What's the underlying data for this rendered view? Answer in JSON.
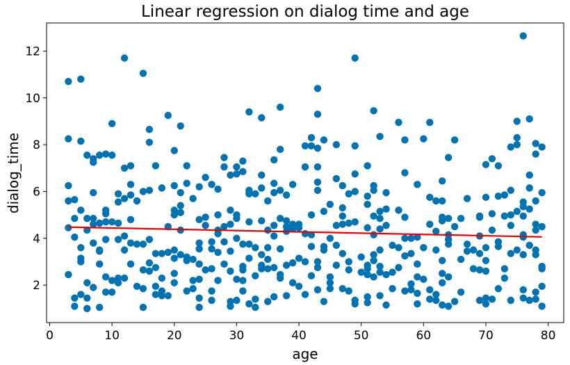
{
  "chart_data": {
    "type": "scatter",
    "title": "Linear regression on dialog time and age",
    "xlabel": "age",
    "ylabel": "dialog_time",
    "xlim": [
      -0.5,
      82.5
    ],
    "ylim": [
      0.4,
      13.2
    ],
    "xticks": [
      0,
      10,
      20,
      30,
      40,
      50,
      60,
      70,
      80
    ],
    "yticks": [
      2,
      4,
      6,
      8,
      10,
      12
    ],
    "grid": false,
    "point_color": "#0173b2",
    "line_color": "#ee0000",
    "regression_line": {
      "x": [
        3,
        79
      ],
      "y": [
        4.48,
        4.06
      ]
    },
    "points": [
      [
        3,
        10.7
      ],
      [
        3,
        8.25
      ],
      [
        3,
        6.25
      ],
      [
        3,
        5.6
      ],
      [
        3,
        4.45
      ],
      [
        3,
        2.45
      ],
      [
        4,
        5.65
      ],
      [
        4,
        4.85
      ],
      [
        4,
        4.05
      ],
      [
        4,
        1.45
      ],
      [
        4,
        1.1
      ],
      [
        5,
        10.8
      ],
      [
        5,
        8.15
      ],
      [
        5,
        5.2
      ],
      [
        5,
        3.6
      ],
      [
        5,
        3.15
      ],
      [
        5,
        3.0
      ],
      [
        5,
        1.6
      ],
      [
        6,
        7.55
      ],
      [
        6,
        4.85
      ],
      [
        6,
        4.35
      ],
      [
        6,
        2.1
      ],
      [
        6,
        1.45
      ],
      [
        6,
        1.0
      ],
      [
        7,
        7.4
      ],
      [
        7,
        7.25
      ],
      [
        7,
        5.95
      ],
      [
        7,
        4.85
      ],
      [
        7,
        4.6
      ],
      [
        7,
        3.8
      ],
      [
        7,
        1.9
      ],
      [
        8,
        7.55
      ],
      [
        8,
        4.65
      ],
      [
        8,
        3.5
      ],
      [
        8,
        3.45
      ],
      [
        8,
        2.9
      ],
      [
        8,
        1.05
      ],
      [
        9,
        7.6
      ],
      [
        9,
        5.2
      ],
      [
        9,
        5.05
      ],
      [
        9,
        4.7
      ],
      [
        9,
        3.95
      ],
      [
        9,
        2.35
      ],
      [
        9,
        1.7
      ],
      [
        10,
        8.9
      ],
      [
        10,
        7.55
      ],
      [
        10,
        4.7
      ],
      [
        10,
        2.2
      ],
      [
        10,
        1.7
      ],
      [
        11,
        5.9
      ],
      [
        11,
        5.55
      ],
      [
        11,
        4.65
      ],
      [
        11,
        3.95
      ],
      [
        11,
        2.3
      ],
      [
        11,
        2.1
      ],
      [
        12,
        11.7
      ],
      [
        12,
        7.0
      ],
      [
        12,
        5.7
      ],
      [
        12,
        4.1
      ],
      [
        12,
        3.5
      ],
      [
        12,
        2.3
      ],
      [
        13,
        7.1
      ],
      [
        13,
        6.3
      ],
      [
        13,
        5.85
      ],
      [
        13,
        4.8
      ],
      [
        13,
        3.8
      ],
      [
        13,
        2.9
      ],
      [
        14,
        5.6
      ],
      [
        14,
        3.75
      ],
      [
        14,
        1.95
      ],
      [
        15,
        11.05
      ],
      [
        15,
        6.0
      ],
      [
        15,
        3.75
      ],
      [
        15,
        2.65
      ],
      [
        15,
        1.85
      ],
      [
        15,
        1.05
      ],
      [
        16,
        8.65
      ],
      [
        16,
        8.1
      ],
      [
        16,
        6.05
      ],
      [
        16,
        3.95
      ],
      [
        16,
        2.95
      ],
      [
        16,
        2.6
      ],
      [
        17,
        7.1
      ],
      [
        17,
        3.35
      ],
      [
        17,
        2.75
      ],
      [
        17,
        1.95
      ],
      [
        17,
        1.6
      ],
      [
        18,
        6.15
      ],
      [
        18,
        3.35
      ],
      [
        18,
        2.3
      ],
      [
        18,
        1.75
      ],
      [
        18,
        1.55
      ],
      [
        19,
        9.25
      ],
      [
        19,
        4.5
      ],
      [
        19,
        3.4
      ],
      [
        19,
        1.55
      ],
      [
        20,
        7.75
      ],
      [
        20,
        6.25
      ],
      [
        20,
        5.2
      ],
      [
        20,
        5.0
      ],
      [
        20,
        3.5
      ],
      [
        20,
        3.15
      ],
      [
        20,
        2.5
      ],
      [
        20,
        2.1
      ],
      [
        21,
        8.8
      ],
      [
        21,
        5.95
      ],
      [
        21,
        5.4
      ],
      [
        21,
        5.1
      ],
      [
        21,
        4.35
      ],
      [
        21,
        3.3
      ],
      [
        22,
        7.1
      ],
      [
        22,
        6.35
      ],
      [
        22,
        3.2
      ],
      [
        22,
        3.05
      ],
      [
        22,
        1.75
      ],
      [
        23,
        5.7
      ],
      [
        23,
        3.1
      ],
      [
        23,
        2.2
      ],
      [
        23,
        1.85
      ],
      [
        24,
        6.2
      ],
      [
        24,
        4.8
      ],
      [
        24,
        3.8
      ],
      [
        24,
        3.55
      ],
      [
        24,
        2.9
      ],
      [
        24,
        2.25
      ],
      [
        24,
        1.45
      ],
      [
        24,
        1.05
      ],
      [
        25,
        6.6
      ],
      [
        25,
        4.9
      ],
      [
        25,
        4.55
      ],
      [
        25,
        2.65
      ],
      [
        26,
        6.3
      ],
      [
        26,
        3.85
      ],
      [
        26,
        3.55
      ],
      [
        26,
        2.7
      ],
      [
        26,
        1.75
      ],
      [
        26,
        1.35
      ],
      [
        27,
        6.1
      ],
      [
        27,
        5.0
      ],
      [
        27,
        4.35
      ],
      [
        27,
        4.2
      ],
      [
        27,
        3.4
      ],
      [
        27,
        2.2
      ],
      [
        28,
        7.45
      ],
      [
        28,
        7.05
      ],
      [
        28,
        4.5
      ],
      [
        28,
        3.85
      ],
      [
        28,
        2.9
      ],
      [
        29,
        6.7
      ],
      [
        29,
        5.2
      ],
      [
        29,
        4.6
      ],
      [
        29,
        3.45
      ],
      [
        29,
        2.6
      ],
      [
        29,
        1.3
      ],
      [
        29,
        1.1
      ],
      [
        30,
        7.05
      ],
      [
        30,
        6.75
      ],
      [
        30,
        5.0
      ],
      [
        30,
        4.85
      ],
      [
        30,
        4.0
      ],
      [
        30,
        2.25
      ],
      [
        30,
        1.35
      ],
      [
        31,
        7.3
      ],
      [
        31,
        6.85
      ],
      [
        31,
        3.75
      ],
      [
        31,
        2.8
      ],
      [
        31,
        2.65
      ],
      [
        31,
        2.2
      ],
      [
        31,
        1.75
      ],
      [
        32,
        9.4
      ],
      [
        32,
        6.05
      ],
      [
        32,
        5.9
      ],
      [
        32,
        4.7
      ],
      [
        32,
        3.75
      ],
      [
        32,
        3.15
      ],
      [
        32,
        1.2
      ],
      [
        33,
        5.9
      ],
      [
        33,
        3.6
      ],
      [
        33,
        2.4
      ],
      [
        33,
        1.4
      ],
      [
        33,
        1.05
      ],
      [
        34,
        9.15
      ],
      [
        34,
        6.7
      ],
      [
        34,
        6.15
      ],
      [
        34,
        4.75
      ],
      [
        34,
        3.3
      ],
      [
        34,
        2.85
      ],
      [
        34,
        2.7
      ],
      [
        35,
        5.6
      ],
      [
        35,
        4.35
      ],
      [
        35,
        3.6
      ],
      [
        35,
        3.1
      ],
      [
        35,
        2.7
      ],
      [
        35,
        1.3
      ],
      [
        36,
        7.35
      ],
      [
        36,
        6.35
      ],
      [
        36,
        5.95
      ],
      [
        36,
        4.55
      ],
      [
        36,
        4.1
      ],
      [
        36,
        2.75
      ],
      [
        36,
        1.5
      ],
      [
        37,
        9.6
      ],
      [
        37,
        7.8
      ],
      [
        37,
        6.05
      ],
      [
        37,
        4.85
      ],
      [
        37,
        3.55
      ],
      [
        37,
        2.45
      ],
      [
        37,
        2.3
      ],
      [
        38,
        5.85
      ],
      [
        38,
        4.75
      ],
      [
        38,
        4.5
      ],
      [
        38,
        4.3
      ],
      [
        38,
        2.85
      ],
      [
        38,
        1.55
      ],
      [
        39,
        6.3
      ],
      [
        39,
        4.6
      ],
      [
        39,
        4.4
      ],
      [
        39,
        2.95
      ],
      [
        39,
        2.1
      ],
      [
        40,
        4.6
      ],
      [
        40,
        4.45
      ],
      [
        40,
        3.15
      ],
      [
        40,
        1.95
      ],
      [
        41,
        7.95
      ],
      [
        41,
        7.05
      ],
      [
        41,
        4.2
      ],
      [
        41,
        3.0
      ],
      [
        41,
        1.6
      ],
      [
        42,
        8.3
      ],
      [
        42,
        7.95
      ],
      [
        42,
        5.0
      ],
      [
        42,
        4.15
      ],
      [
        42,
        3.65
      ],
      [
        42,
        2.4
      ],
      [
        43,
        10.4
      ],
      [
        43,
        9.3
      ],
      [
        43,
        7.85
      ],
      [
        43,
        7.05
      ],
      [
        43,
        6.4
      ],
      [
        43,
        6.05
      ],
      [
        43,
        3.0
      ],
      [
        43,
        2.75
      ],
      [
        43,
        1.8
      ],
      [
        44,
        8.2
      ],
      [
        44,
        5.15
      ],
      [
        44,
        3.65
      ],
      [
        44,
        3.5
      ],
      [
        44,
        1.3
      ],
      [
        45,
        5.45
      ],
      [
        45,
        4.0
      ],
      [
        45,
        2.35
      ],
      [
        45,
        2.1
      ],
      [
        45,
        1.85
      ],
      [
        46,
        8.0
      ],
      [
        46,
        6.55
      ],
      [
        46,
        4.55
      ],
      [
        46,
        3.7
      ],
      [
        46,
        2.85
      ],
      [
        47,
        6.25
      ],
      [
        47,
        5.3
      ],
      [
        47,
        4.95
      ],
      [
        47,
        4.6
      ],
      [
        47,
        3.35
      ],
      [
        47,
        1.85
      ],
      [
        48,
        5.9
      ],
      [
        48,
        4.65
      ],
      [
        48,
        3.0
      ],
      [
        48,
        2.65
      ],
      [
        48,
        1.75
      ],
      [
        49,
        11.7
      ],
      [
        49,
        7.95
      ],
      [
        49,
        6.75
      ],
      [
        49,
        6.0
      ],
      [
        49,
        4.7
      ],
      [
        49,
        1.35
      ],
      [
        49,
        1.2
      ],
      [
        50,
        3.2
      ],
      [
        50,
        2.55
      ],
      [
        51,
        7.1
      ],
      [
        51,
        5.8
      ],
      [
        51,
        5.45
      ],
      [
        51,
        4.45
      ],
      [
        51,
        2.85
      ],
      [
        51,
        2.7
      ],
      [
        51,
        2.45
      ],
      [
        51,
        1.5
      ],
      [
        51,
        1.25
      ],
      [
        52,
        9.45
      ],
      [
        52,
        6.25
      ],
      [
        52,
        6.05
      ],
      [
        52,
        4.95
      ],
      [
        52,
        4.15
      ],
      [
        52,
        3.3
      ],
      [
        52,
        3.05
      ],
      [
        52,
        2.35
      ],
      [
        53,
        8.35
      ],
      [
        53,
        5.15
      ],
      [
        53,
        4.85
      ],
      [
        53,
        4.4
      ],
      [
        53,
        3.5
      ],
      [
        53,
        2.8
      ],
      [
        53,
        2.55
      ],
      [
        53,
        1.55
      ],
      [
        54,
        5.95
      ],
      [
        54,
        5.25
      ],
      [
        54,
        4.55
      ],
      [
        54,
        2.45
      ],
      [
        54,
        1.15
      ],
      [
        55,
        3.7
      ],
      [
        55,
        2.55
      ],
      [
        55,
        1.85
      ],
      [
        56,
        8.95
      ],
      [
        56,
        5.2
      ],
      [
        56,
        3.6
      ],
      [
        56,
        2.75
      ],
      [
        57,
        8.2
      ],
      [
        57,
        6.8
      ],
      [
        57,
        4.9
      ],
      [
        57,
        4.0
      ],
      [
        57,
        3.25
      ],
      [
        57,
        1.75
      ],
      [
        58,
        4.0
      ],
      [
        58,
        3.35
      ],
      [
        58,
        2.05
      ],
      [
        58,
        1.8
      ],
      [
        59,
        6.3
      ],
      [
        59,
        4.05
      ],
      [
        59,
        2.9
      ],
      [
        59,
        2.35
      ],
      [
        59,
        1.65
      ],
      [
        59,
        1.2
      ],
      [
        60,
        8.25
      ],
      [
        60,
        3.6
      ],
      [
        60,
        2.25
      ],
      [
        61,
        8.95
      ],
      [
        61,
        5.75
      ],
      [
        61,
        4.6
      ],
      [
        61,
        1.8
      ],
      [
        61,
        1.4
      ],
      [
        62,
        5.6
      ],
      [
        62,
        4.3
      ],
      [
        62,
        3.5
      ],
      [
        62,
        1.6
      ],
      [
        62,
        1.35
      ],
      [
        63,
        6.45
      ],
      [
        63,
        5.6
      ],
      [
        63,
        4.9
      ],
      [
        63,
        4.75
      ],
      [
        63,
        3.05
      ],
      [
        63,
        2.5
      ],
      [
        63,
        2.1
      ],
      [
        63,
        1.15
      ],
      [
        64,
        7.45
      ],
      [
        64,
        4.85
      ],
      [
        64,
        4.15
      ],
      [
        64,
        3.95
      ],
      [
        64,
        3.75
      ],
      [
        64,
        2.35
      ],
      [
        64,
        1.1
      ],
      [
        65,
        8.2
      ],
      [
        65,
        4.5
      ],
      [
        65,
        1.3
      ],
      [
        66,
        4.85
      ],
      [
        66,
        3.1
      ],
      [
        66,
        1.7
      ],
      [
        67,
        5.7
      ],
      [
        67,
        3.75
      ],
      [
        67,
        3.45
      ],
      [
        68,
        3.5
      ],
      [
        68,
        2.7
      ],
      [
        69,
        4.95
      ],
      [
        69,
        4.9
      ],
      [
        69,
        4.1
      ],
      [
        69,
        3.35
      ],
      [
        69,
        2.65
      ],
      [
        69,
        1.35
      ],
      [
        70,
        7.15
      ],
      [
        70,
        5.75
      ],
      [
        70,
        3.6
      ],
      [
        70,
        3.05
      ],
      [
        70,
        2.6
      ],
      [
        70,
        1.45
      ],
      [
        70,
        1.2
      ],
      [
        71,
        7.4
      ],
      [
        71,
        5.05
      ],
      [
        71,
        4.35
      ],
      [
        71,
        1.4
      ],
      [
        72,
        7.1
      ],
      [
        72,
        5.8
      ],
      [
        72,
        3.85
      ],
      [
        72,
        3.65
      ],
      [
        72,
        1.85
      ],
      [
        73,
        5.85
      ],
      [
        73,
        4.95
      ],
      [
        73,
        2.7
      ],
      [
        73,
        2.3
      ],
      [
        74,
        7.9
      ],
      [
        74,
        6.05
      ],
      [
        74,
        5.0
      ],
      [
        74,
        4.55
      ],
      [
        74,
        3.35
      ],
      [
        74,
        1.35
      ],
      [
        75,
        9.0
      ],
      [
        75,
        8.3
      ],
      [
        75,
        8.0
      ],
      [
        75,
        5.15
      ],
      [
        75,
        3.5
      ],
      [
        76,
        12.65
      ],
      [
        76,
        5.55
      ],
      [
        76,
        5.35
      ],
      [
        76,
        4.95
      ],
      [
        76,
        4.15
      ],
      [
        76,
        4.05
      ],
      [
        76,
        3.3
      ],
      [
        76,
        1.8
      ],
      [
        76,
        1.45
      ],
      [
        77,
        9.1
      ],
      [
        77,
        6.7
      ],
      [
        77,
        6.15
      ],
      [
        77,
        5.25
      ],
      [
        77,
        3.7
      ],
      [
        77,
        1.35
      ],
      [
        78,
        8.05
      ],
      [
        78,
        7.6
      ],
      [
        78,
        5.6
      ],
      [
        78,
        4.6
      ],
      [
        78,
        4.35
      ],
      [
        78,
        3.5
      ],
      [
        78,
        3.3
      ],
      [
        78,
        1.7
      ],
      [
        78,
        1.4
      ],
      [
        79,
        7.9
      ],
      [
        79,
        5.95
      ],
      [
        79,
        4.5
      ],
      [
        79,
        2.8
      ],
      [
        79,
        2.7
      ],
      [
        79,
        1.95
      ],
      [
        79,
        1.1
      ]
    ]
  }
}
